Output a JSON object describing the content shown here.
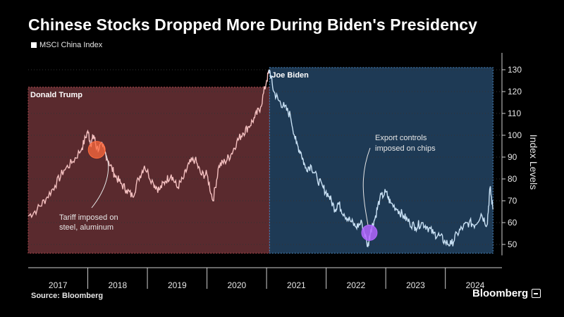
{
  "title": "Chinese Stocks Dropped More During Biden's Presidency",
  "legend": {
    "label": "MSCI China Index"
  },
  "source": "Source: Bloomberg",
  "brand": "Bloomberg",
  "colors": {
    "trump_fill": "#5a2a2e",
    "trump_line": "#f4c0c0",
    "biden_fill": "#1e3a55",
    "biden_line": "#c8e0f4",
    "marker_tariff": "#ff6a3d",
    "marker_export": "#b266ff"
  },
  "chart_data": {
    "type": "line",
    "title": "Chinese Stocks Dropped More During Biden's Presidency",
    "ylabel": "Index Levels",
    "xlabel": "",
    "ylim": [
      40,
      135
    ],
    "yticks": [
      50,
      60,
      70,
      80,
      90,
      100,
      110,
      120,
      130
    ],
    "x_categories": [
      "2017",
      "2018",
      "2019",
      "2020",
      "2021",
      "2022",
      "2023",
      "2024"
    ],
    "series": [
      {
        "name": "MSCI China Index",
        "x": [
          2017.0,
          2017.15,
          2017.3,
          2017.45,
          2017.6,
          2017.75,
          2017.9,
          2018.0,
          2018.05,
          2018.1,
          2018.15,
          2018.25,
          2018.35,
          2018.45,
          2018.55,
          2018.65,
          2018.75,
          2018.85,
          2018.95,
          2019.1,
          2019.2,
          2019.3,
          2019.4,
          2019.5,
          2019.6,
          2019.7,
          2019.8,
          2019.9,
          2020.0,
          2020.1,
          2020.2,
          2020.3,
          2020.4,
          2020.5,
          2020.6,
          2020.7,
          2020.8,
          2020.9,
          2021.0,
          2021.05,
          2021.12,
          2021.2,
          2021.3,
          2021.4,
          2021.5,
          2021.58,
          2021.65,
          2021.75,
          2021.85,
          2021.95,
          2022.05,
          2022.15,
          2022.2,
          2022.3,
          2022.4,
          2022.5,
          2022.6,
          2022.7,
          2022.75,
          2022.82,
          2022.9,
          2023.0,
          2023.08,
          2023.2,
          2023.3,
          2023.4,
          2023.5,
          2023.6,
          2023.7,
          2023.8,
          2023.9,
          2024.0,
          2024.1,
          2024.2,
          2024.3,
          2024.4,
          2024.5,
          2024.6,
          2024.7,
          2024.75,
          2024.8
        ],
        "values": [
          63,
          66,
          71,
          77,
          84,
          88,
          94,
          102,
          96,
          100,
          94,
          95,
          88,
          82,
          78,
          75,
          72,
          80,
          86,
          78,
          75,
          79,
          82,
          76,
          80,
          87,
          89,
          82,
          82,
          70,
          86,
          88,
          91,
          97,
          101,
          104,
          108,
          113,
          125,
          130,
          120,
          116,
          113,
          109,
          96,
          92,
          85,
          86,
          80,
          76,
          72,
          66,
          69,
          64,
          61,
          58,
          60,
          49,
          57,
          62,
          71,
          74,
          69,
          66,
          63,
          60,
          58,
          60,
          58,
          55,
          54,
          51,
          50,
          55,
          58,
          60,
          59,
          64,
          59,
          76,
          66
        ]
      }
    ],
    "regions": [
      {
        "label": "Donald Trump",
        "start": 2017.0,
        "end": 2021.05
      },
      {
        "label": "Joe Biden",
        "start": 2021.05,
        "end": 2024.8
      }
    ],
    "annotations": [
      {
        "text_lines": [
          "Tariff imposed on",
          "steel, aluminum"
        ],
        "x": 2018.15,
        "y": 94
      },
      {
        "text_lines": [
          "Export controls",
          "imposed on chips"
        ],
        "x": 2022.82,
        "y": 56
      }
    ]
  }
}
